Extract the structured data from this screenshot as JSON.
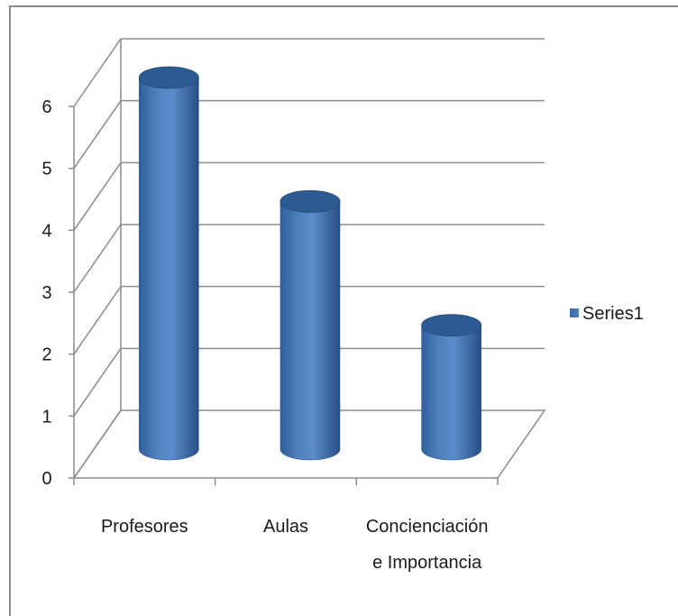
{
  "chart_data": {
    "type": "bar",
    "style": "3d-cylinder",
    "categories": [
      "Profesores",
      "Aulas",
      "Concienciación e Importancia"
    ],
    "category_lines": [
      [
        "Profesores"
      ],
      [
        "Aulas"
      ],
      [
        "Concienciación",
        "e Importancia"
      ]
    ],
    "series": [
      {
        "name": "Series1",
        "values": [
          6,
          4,
          2
        ],
        "color": "#4f81bd"
      }
    ],
    "ylim": [
      0,
      6
    ],
    "yticks": [
      "0",
      "1",
      "2",
      "3",
      "4",
      "5",
      "6"
    ],
    "grid": true,
    "legend": "right",
    "title": "",
    "xlabel": "",
    "ylabel": ""
  }
}
